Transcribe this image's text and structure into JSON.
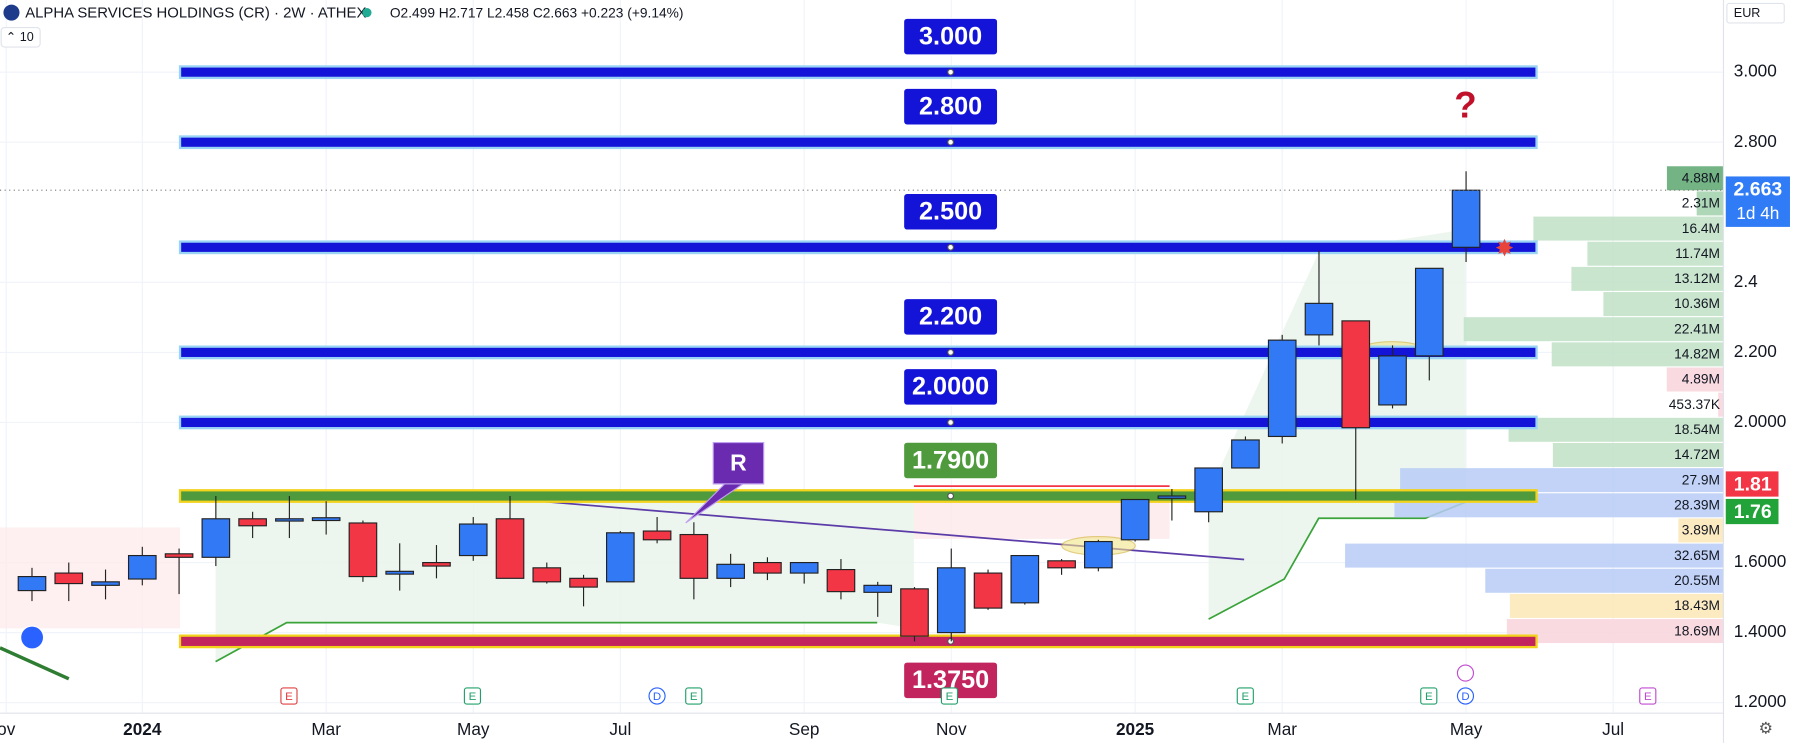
{
  "header": {
    "symbol": "ALPHA SERVICES HOLDINGS (CR) · 2W · ATHEX",
    "ohlc": "O2.499 H2.717 L2.458 C2.663 +0.223 (+9.14%)",
    "indicator": "10",
    "currency": "EUR"
  },
  "chart_data": {
    "type": "candlestick",
    "open": [
      1.52,
      1.57,
      1.535,
      1.553,
      1.625,
      1.615,
      1.725,
      1.72,
      1.72,
      1.713,
      1.567,
      1.6,
      1.62,
      1.725,
      1.585,
      1.555,
      1.545,
      1.69,
      1.68,
      1.555,
      1.6,
      1.57,
      1.58,
      1.515,
      1.525,
      1.4,
      1.57,
      1.485,
      1.605,
      1.585,
      1.665,
      1.785,
      1.745,
      1.87,
      1.96,
      2.25,
      2.29,
      2.05,
      2.19,
      2.5
    ],
    "high": [
      1.585,
      1.6,
      1.58,
      1.645,
      1.64,
      1.79,
      1.745,
      1.79,
      1.775,
      1.72,
      1.655,
      1.65,
      1.73,
      1.79,
      1.6,
      1.565,
      1.69,
      1.73,
      1.715,
      1.625,
      1.615,
      1.6,
      1.61,
      1.545,
      1.53,
      1.64,
      1.58,
      1.62,
      1.61,
      1.665,
      1.78,
      1.81,
      1.87,
      1.96,
      2.25,
      2.49,
      2.29,
      2.22,
      2.44,
      2.717
    ],
    "low": [
      1.49,
      1.49,
      1.495,
      1.535,
      1.51,
      1.59,
      1.67,
      1.67,
      1.68,
      1.545,
      1.52,
      1.555,
      1.605,
      1.555,
      1.54,
      1.475,
      1.545,
      1.655,
      1.495,
      1.53,
      1.55,
      1.54,
      1.495,
      1.445,
      1.375,
      1.375,
      1.465,
      1.48,
      1.565,
      1.575,
      1.66,
      1.72,
      1.715,
      1.87,
      1.94,
      2.22,
      1.78,
      2.04,
      2.12,
      2.458
    ],
    "close": [
      1.56,
      1.54,
      1.545,
      1.62,
      1.615,
      1.725,
      1.705,
      1.725,
      1.728,
      1.56,
      1.575,
      1.59,
      1.71,
      1.555,
      1.545,
      1.53,
      1.685,
      1.665,
      1.555,
      1.595,
      1.57,
      1.6,
      1.517,
      1.535,
      1.39,
      1.585,
      1.47,
      1.62,
      1.585,
      1.66,
      1.78,
      1.79,
      1.87,
      1.95,
      2.235,
      2.34,
      1.985,
      2.19,
      2.44,
      2.663
    ],
    "up_color": "#3179f5",
    "down_color": "#f23645",
    "xlim": [
      -0.87,
      46.0
    ],
    "xticks": [
      {
        "value": -0.7,
        "label": "ov"
      },
      {
        "value": 3,
        "label": "2024"
      },
      {
        "value": 8,
        "label": "Mar"
      },
      {
        "value": 12,
        "label": "May"
      },
      {
        "value": 16,
        "label": "Jul"
      },
      {
        "value": 21,
        "label": "Sep"
      },
      {
        "value": 25,
        "label": "Nov"
      },
      {
        "value": 30,
        "label": "2025"
      },
      {
        "value": 34,
        "label": "Mar"
      },
      {
        "value": 39,
        "label": "May"
      },
      {
        "value": 43,
        "label": "Jul"
      }
    ],
    "ylim": [
      1.17,
      3.206
    ],
    "yticks": [
      {
        "value": 3,
        "label": "3.000"
      },
      {
        "value": 2.8,
        "label": "2.800"
      },
      2.4,
      {
        "value": 2.2,
        "label": "2.200"
      },
      {
        "value": 2,
        "label": "2.0000"
      },
      {
        "value": 1.6,
        "label": "1.6000"
      },
      {
        "value": 1.4,
        "label": "1.4000"
      },
      {
        "value": 1.2,
        "label": "1.2000"
      }
    ],
    "grid": true,
    "levels": [
      {
        "value": 3,
        "label": "3.000"
      },
      {
        "value": 2.8,
        "label": "2.800"
      },
      {
        "value": 2.5,
        "label": "2.500"
      },
      {
        "value": 2.2,
        "label": "2.200"
      },
      {
        "value": 2,
        "label": "2.0000"
      },
      {
        "value": 1.79,
        "label": "1.7900"
      },
      {
        "value": 1.375,
        "label": "1.3750"
      }
    ],
    "level_colors": [
      "#1414d8",
      "#1414d8",
      "#1414d8",
      "#1414d8",
      "#1414d8",
      "#4e9a3c",
      "#c2245e"
    ],
    "price_tags": [
      2.663,
      1.81,
      1.76
    ],
    "countdown": "1d 4h",
    "annotations": [
      "R",
      "?"
    ],
    "events": [
      "E",
      "E",
      "D",
      "E",
      "E",
      "E",
      "E",
      "D",
      "E"
    ],
    "volume_profile": {
      "values": [
        4880000,
        2310000,
        16400000,
        11740000,
        13120000,
        10360000,
        22410000,
        14820000,
        4890000,
        453370,
        18540000,
        14720000,
        27900000,
        28390000,
        3890000,
        32650000,
        20550000,
        18430000,
        18690000
      ],
      "value_labels": [
        "4.88M",
        "2.31M",
        "16.4M",
        "11.74M",
        "13.12M",
        "10.36M",
        "22.41M",
        "14.82M",
        "4.89M",
        "453.37K",
        "18.54M",
        "14.72M",
        "27.9M",
        "28.39M",
        "3.89M",
        "32.65M",
        "20.55M",
        "18.43M",
        "18.69M"
      ],
      "colors": [
        "#5aa66e",
        "#9fd0aa",
        "#bfe0c6",
        "#bfe0c6",
        "#bfe0c6",
        "#bfe0c6",
        "#bfe0c6",
        "#bfe0c6",
        "#f8d3db",
        "#f8d3db",
        "#bfe0c6",
        "#bfe0c6",
        "#b7cbf6",
        "#b7cbf6",
        "#fbe6b6",
        "#b7cbf6",
        "#b7cbf6",
        "#fbe6b6",
        "#f8d3db"
      ]
    }
  }
}
